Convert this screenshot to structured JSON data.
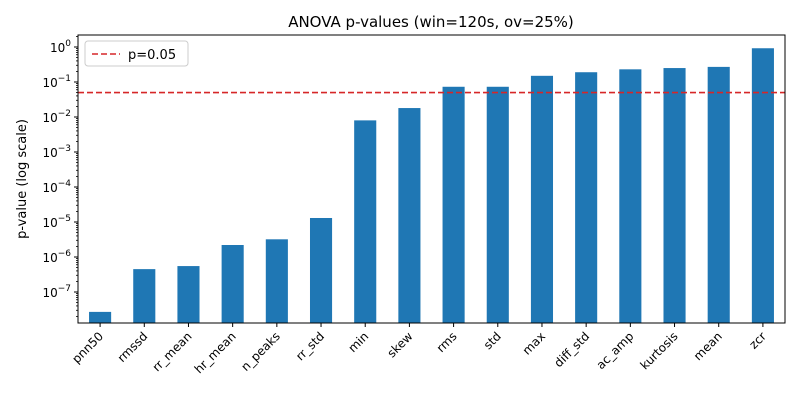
{
  "chart_data": {
    "type": "bar",
    "title": "ANOVA p-values (win=120s, ov=25%)",
    "xlabel": "",
    "ylabel": "p-value (log scale)",
    "yscale": "log",
    "ylim": [
      1.3e-08,
      2.2
    ],
    "grid": false,
    "bar_color": "#1f77b4",
    "categories": [
      "pnn50",
      "rmssd",
      "rr_mean",
      "hr_mean",
      "n_peaks",
      "rr_std",
      "min",
      "skew",
      "rms",
      "std",
      "max",
      "diff_std",
      "ac_amp",
      "kurtosis",
      "mean",
      "zcr"
    ],
    "values": [
      2.7e-08,
      4.5e-07,
      5.5e-07,
      2.2e-06,
      3.2e-06,
      1.3e-05,
      0.008,
      0.018,
      0.073,
      0.073,
      0.15,
      0.19,
      0.23,
      0.25,
      0.27,
      0.92
    ],
    "yticks": [
      {
        "base": "10",
        "exp": "−7",
        "value": 1e-07
      },
      {
        "base": "10",
        "exp": "−6",
        "value": 1e-06
      },
      {
        "base": "10",
        "exp": "−5",
        "value": 1e-05
      },
      {
        "base": "10",
        "exp": "−4",
        "value": 0.0001
      },
      {
        "base": "10",
        "exp": "−3",
        "value": 0.001
      },
      {
        "base": "10",
        "exp": "−2",
        "value": 0.01
      },
      {
        "base": "10",
        "exp": "−1",
        "value": 0.1
      },
      {
        "base": "10",
        "exp": "0",
        "value": 1
      }
    ],
    "reference_line": {
      "value": 0.05,
      "label": "p=0.05",
      "color": "#d62728",
      "style": "dashed"
    },
    "legend": {
      "placement": "top-left",
      "entries": [
        "p=0.05"
      ]
    }
  }
}
